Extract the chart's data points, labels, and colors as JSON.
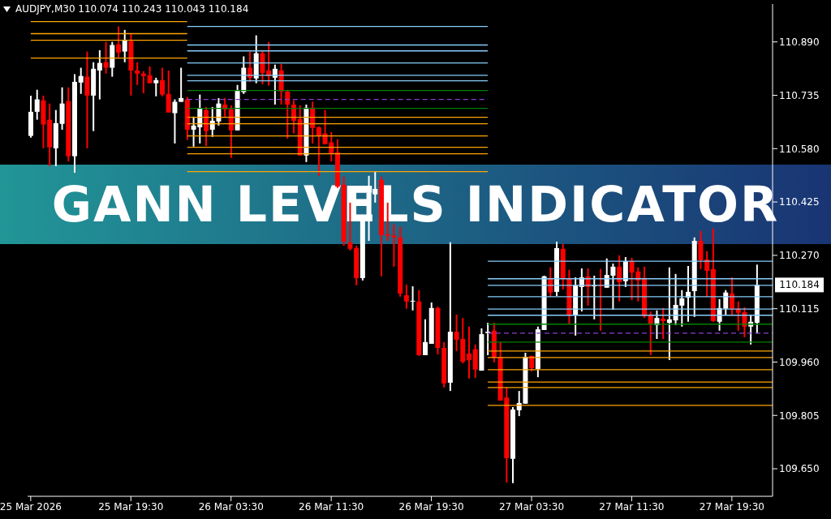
{
  "chart_data": {
    "type": "candlestick",
    "title": "GANN LEVELS INDICATOR",
    "annotations": [
      "AUDJPY,M30 110.074 110.243 110.043 110.184",
      {
        "text": "110.184",
        "x": "2026-03-27T21:30",
        "y": 110.184
      }
    ],
    "x": [
      "2026-03-25T11:30",
      "2026-03-25T12:00",
      "2026-03-25T12:30",
      "2026-03-25T13:00",
      "2026-03-25T13:30",
      "2026-03-25T14:00",
      "2026-03-25T14:30",
      "2026-03-25T15:00",
      "2026-03-25T15:30",
      "2026-03-25T16:00",
      "2026-03-25T16:30",
      "2026-03-25T17:00",
      "2026-03-25T17:30",
      "2026-03-25T18:00",
      "2026-03-25T18:30",
      "2026-03-25T19:00",
      "2026-03-25T19:30",
      "2026-03-25T20:00",
      "2026-03-25T20:30",
      "2026-03-25T21:00",
      "2026-03-25T21:30",
      "2026-03-25T22:00",
      "2026-03-25T22:30",
      "2026-03-25T23:00",
      "2026-03-25T23:30",
      "2026-03-26T00:00",
      "2026-03-26T00:30",
      "2026-03-26T01:00",
      "2026-03-26T01:30",
      "2026-03-26T02:00",
      "2026-03-26T02:30",
      "2026-03-26T03:00",
      "2026-03-26T03:30",
      "2026-03-26T04:00",
      "2026-03-26T04:30",
      "2026-03-26T05:00",
      "2026-03-26T05:30",
      "2026-03-26T06:00",
      "2026-03-26T06:30",
      "2026-03-26T07:00",
      "2026-03-26T07:30",
      "2026-03-26T08:00",
      "2026-03-26T08:30",
      "2026-03-26T09:00",
      "2026-03-26T09:30",
      "2026-03-26T10:00",
      "2026-03-26T10:30",
      "2026-03-26T11:00",
      "2026-03-26T11:30",
      "2026-03-26T12:00",
      "2026-03-26T12:30",
      "2026-03-26T13:00",
      "2026-03-26T13:30",
      "2026-03-26T14:00",
      "2026-03-26T14:30",
      "2026-03-26T15:00",
      "2026-03-26T15:30",
      "2026-03-26T16:00",
      "2026-03-26T16:30",
      "2026-03-26T17:00",
      "2026-03-26T17:30",
      "2026-03-26T18:00",
      "2026-03-26T18:30",
      "2026-03-26T19:00",
      "2026-03-26T19:30",
      "2026-03-26T20:00",
      "2026-03-26T20:30",
      "2026-03-26T21:00",
      "2026-03-26T21:30",
      "2026-03-26T22:00",
      "2026-03-26T22:30",
      "2026-03-26T23:00",
      "2026-03-26T23:30",
      "2026-03-27T00:00",
      "2026-03-27T00:30",
      "2026-03-27T01:00",
      "2026-03-27T01:30",
      "2026-03-27T02:00",
      "2026-03-27T02:30",
      "2026-03-27T03:00",
      "2026-03-27T03:30",
      "2026-03-27T04:00",
      "2026-03-27T04:30",
      "2026-03-27T05:00",
      "2026-03-27T05:30",
      "2026-03-27T06:00",
      "2026-03-27T06:30",
      "2026-03-27T07:00",
      "2026-03-27T07:30",
      "2026-03-27T08:00",
      "2026-03-27T08:30",
      "2026-03-27T09:00",
      "2026-03-27T09:30",
      "2026-03-27T10:00",
      "2026-03-27T10:30",
      "2026-03-27T11:00",
      "2026-03-27T11:30",
      "2026-03-27T12:00",
      "2026-03-27T12:30",
      "2026-03-27T13:00",
      "2026-03-27T13:30",
      "2026-03-27T14:00",
      "2026-03-27T14:30",
      "2026-03-27T15:00",
      "2026-03-27T15:30",
      "2026-03-27T16:00",
      "2026-03-27T16:30",
      "2026-03-27T17:00",
      "2026-03-27T17:30",
      "2026-03-27T18:00",
      "2026-03-27T18:30",
      "2026-03-27T19:00",
      "2026-03-27T19:30",
      "2026-03-27T20:00",
      "2026-03-27T20:30",
      "2026-03-27T21:00",
      "2026-03-27T21:30"
    ],
    "ohlc": [
      [
        110.617,
        110.734,
        110.612,
        110.687
      ],
      [
        110.687,
        110.751,
        110.664,
        110.723
      ],
      [
        110.72,
        110.734,
        110.581,
        110.65
      ],
      [
        110.664,
        110.711,
        110.529,
        110.584
      ],
      [
        110.581,
        110.692,
        110.529,
        110.654
      ],
      [
        110.652,
        110.758,
        110.635,
        110.711
      ],
      [
        110.718,
        110.758,
        110.543,
        110.558
      ],
      [
        110.558,
        110.796,
        110.51,
        110.774
      ],
      [
        110.772,
        110.815,
        110.739,
        110.791
      ],
      [
        110.789,
        110.862,
        110.581,
        110.734
      ],
      [
        110.734,
        110.831,
        110.631,
        110.812
      ],
      [
        110.807,
        110.866,
        110.723,
        110.829
      ],
      [
        110.831,
        110.89,
        110.798,
        110.815
      ],
      [
        110.815,
        110.89,
        110.789,
        110.881
      ],
      [
        110.883,
        110.935,
        110.843,
        110.859
      ],
      [
        110.862,
        110.925,
        110.831,
        110.895
      ],
      [
        110.892,
        110.914,
        110.734,
        110.807
      ],
      [
        110.807,
        110.831,
        110.765,
        110.798
      ],
      [
        110.798,
        110.805,
        110.741,
        110.791
      ],
      [
        110.793,
        110.819,
        110.77,
        110.77
      ],
      [
        110.77,
        110.786,
        110.732,
        110.779
      ],
      [
        110.779,
        110.815,
        110.732,
        110.737
      ],
      [
        110.739,
        110.807,
        110.685,
        110.685
      ],
      [
        110.683,
        110.723,
        110.595,
        110.716
      ],
      [
        110.716,
        110.815,
        110.716,
        110.727
      ],
      [
        110.723,
        110.73,
        110.605,
        110.635
      ],
      [
        110.635,
        110.673,
        110.586,
        110.647
      ],
      [
        110.642,
        110.737,
        110.595,
        110.697
      ],
      [
        110.692,
        110.701,
        110.588,
        110.631
      ],
      [
        110.635,
        110.701,
        110.614,
        110.661
      ],
      [
        110.659,
        110.727,
        110.647,
        110.711
      ],
      [
        110.708,
        110.727,
        110.673,
        110.694
      ],
      [
        110.694,
        110.706,
        110.553,
        110.633
      ],
      [
        110.633,
        110.765,
        110.633,
        110.749
      ],
      [
        110.744,
        110.848,
        110.739,
        110.815
      ],
      [
        110.815,
        110.862,
        110.774,
        110.786
      ],
      [
        110.784,
        110.909,
        110.77,
        110.857
      ],
      [
        110.857,
        110.866,
        110.767,
        110.8
      ],
      [
        110.807,
        110.89,
        110.763,
        110.791
      ],
      [
        110.786,
        110.824,
        110.708,
        110.812
      ],
      [
        110.807,
        110.826,
        110.708,
        110.746
      ],
      [
        110.746,
        110.751,
        110.609,
        110.708
      ],
      [
        110.708,
        110.72,
        110.624,
        110.661
      ],
      [
        110.666,
        110.706,
        110.56,
        110.56
      ],
      [
        110.56,
        110.708,
        110.541,
        110.699
      ],
      [
        110.699,
        110.716,
        110.595,
        110.64
      ],
      [
        110.642,
        110.645,
        110.501,
        110.617
      ],
      [
        110.624,
        110.692,
        110.593,
        110.593
      ],
      [
        110.598,
        110.628,
        110.543,
        110.567
      ],
      [
        110.569,
        110.607,
        110.466,
        110.47
      ],
      [
        110.475,
        110.499,
        110.298,
        110.31
      ],
      [
        110.308,
        110.423,
        110.284,
        110.289
      ],
      [
        110.291,
        110.298,
        110.183,
        110.204
      ],
      [
        110.204,
        110.388,
        110.197,
        110.376
      ],
      [
        110.369,
        110.501,
        110.312,
        110.452
      ],
      [
        110.447,
        110.513,
        110.423,
        110.463
      ],
      [
        110.489,
        110.499,
        110.209,
        110.329
      ],
      [
        110.331,
        110.423,
        110.312,
        110.327
      ],
      [
        110.327,
        110.36,
        110.237,
        110.322
      ],
      [
        110.322,
        110.353,
        110.15,
        110.159
      ],
      [
        110.154,
        110.185,
        110.115,
        110.136
      ],
      [
        110.136,
        110.18,
        110.11,
        110.138
      ],
      [
        110.136,
        110.169,
        109.978,
        109.98
      ],
      [
        109.98,
        110.084,
        109.98,
        110.018
      ],
      [
        110.013,
        110.133,
        110.013,
        110.117
      ],
      [
        110.117,
        110.121,
        109.982,
        110.001
      ],
      [
        110.001,
        110.018,
        109.886,
        109.898
      ],
      [
        109.9,
        110.308,
        109.876,
        110.048
      ],
      [
        110.048,
        110.098,
        109.992,
        110.025
      ],
      [
        110.027,
        110.088,
        109.956,
        109.961
      ],
      [
        109.985,
        110.063,
        109.912,
        109.966
      ],
      [
        109.997,
        110.011,
        109.914,
        109.938
      ],
      [
        109.935,
        110.058,
        109.935,
        110.041
      ],
      [
        110.044,
        110.074,
        109.98,
        110.048
      ],
      [
        110.051,
        110.074,
        109.959,
        109.973
      ],
      [
        109.975,
        110.018,
        109.848,
        109.848
      ],
      [
        109.857,
        109.886,
        109.61,
        109.681
      ],
      [
        109.679,
        109.829,
        109.608,
        109.822
      ],
      [
        109.82,
        109.876,
        109.803,
        109.841
      ],
      [
        109.839,
        109.987,
        109.839,
        109.975
      ],
      [
        109.978,
        109.978,
        109.933,
        109.942
      ],
      [
        109.94,
        110.063,
        109.916,
        110.055
      ],
      [
        110.053,
        110.211,
        110.053,
        110.209
      ],
      [
        110.204,
        110.235,
        110.15,
        110.162
      ],
      [
        110.164,
        110.31,
        110.152,
        110.291
      ],
      [
        110.289,
        110.303,
        110.171,
        110.204
      ],
      [
        110.204,
        110.228,
        110.07,
        110.096
      ],
      [
        110.096,
        110.206,
        110.037,
        110.183
      ],
      [
        110.178,
        110.232,
        110.107,
        110.206
      ],
      [
        110.209,
        110.232,
        110.124,
        110.178
      ],
      [
        110.18,
        110.211,
        110.084,
        110.183
      ],
      [
        110.183,
        110.23,
        110.051,
        110.18
      ],
      [
        110.176,
        110.261,
        110.176,
        110.213
      ],
      [
        110.211,
        110.246,
        110.112,
        110.237
      ],
      [
        110.237,
        110.27,
        110.136,
        110.192
      ],
      [
        110.195,
        110.265,
        110.178,
        110.253
      ],
      [
        110.253,
        110.263,
        110.14,
        110.22
      ],
      [
        110.223,
        110.235,
        110.136,
        110.197
      ],
      [
        110.204,
        110.237,
        110.088,
        110.093
      ],
      [
        110.098,
        110.107,
        109.98,
        110.072
      ],
      [
        110.067,
        110.11,
        110.027,
        110.088
      ],
      [
        110.086,
        110.117,
        110.027,
        110.079
      ],
      [
        110.074,
        110.235,
        109.966,
        110.084
      ],
      [
        110.081,
        110.216,
        110.067,
        110.126
      ],
      [
        110.124,
        110.169,
        110.063,
        110.145
      ],
      [
        110.147,
        110.239,
        110.077,
        110.164
      ],
      [
        110.166,
        110.322,
        110.091,
        110.312
      ],
      [
        110.312,
        110.341,
        110.23,
        110.256
      ],
      [
        110.258,
        110.282,
        110.15,
        110.225
      ],
      [
        110.23,
        110.348,
        110.077,
        110.079
      ],
      [
        110.077,
        110.143,
        110.051,
        110.117
      ],
      [
        110.115,
        110.169,
        110.096,
        110.162
      ],
      [
        110.159,
        110.206,
        110.096,
        110.115
      ],
      [
        110.115,
        110.136,
        110.051,
        110.103
      ],
      [
        110.105,
        110.119,
        110.032,
        110.063
      ],
      [
        110.063,
        110.098,
        110.011,
        110.077
      ],
      [
        110.074,
        110.243,
        110.043,
        110.184
      ]
    ],
    "colors": [
      "#ffffff",
      "#ffffff",
      "#ff0000",
      "#ff0000",
      "#ffffff",
      "#ffffff",
      "#ff0000",
      "#ffffff",
      "#ffffff",
      "#ff0000",
      "#ffffff",
      "#ffffff",
      "#ff0000",
      "#ffffff",
      "#ff0000",
      "#ffffff",
      "#ff0000",
      "#ff0000",
      "#ff0000",
      "#ff0000",
      "#ffffff",
      "#ff0000",
      "#ff0000",
      "#ffffff",
      "#ffffff",
      "#ff0000",
      "#ffffff",
      "#ffffff",
      "#ff0000",
      "#ffffff",
      "#ffffff",
      "#ff0000",
      "#ff0000",
      "#ffffff",
      "#ffffff",
      "#ff0000",
      "#ffffff",
      "#ff0000",
      "#ff0000",
      "#ffffff",
      "#ff0000",
      "#ff0000",
      "#ff0000",
      "#ff0000",
      "#ffffff",
      "#ff0000",
      "#ff0000",
      "#ff0000",
      "#ff0000",
      "#ff0000",
      "#ff0000",
      "#ff0000",
      "#ff0000",
      "#ffffff",
      "#ffffff",
      "#ffffff",
      "#ff0000",
      "#ff0000",
      "#ff0000",
      "#ff0000",
      "#ff0000",
      "#ffffff",
      "#ff0000",
      "#ffffff",
      "#ffffff",
      "#ff0000",
      "#ff0000",
      "#ffffff",
      "#ff0000",
      "#ff0000",
      "#ff0000",
      "#ff0000",
      "#ffffff",
      "#ffffff",
      "#ff0000",
      "#ff0000",
      "#ff0000",
      "#ffffff",
      "#ffffff",
      "#ffffff",
      "#ff0000",
      "#ffffff",
      "#ffffff",
      "#ff0000",
      "#ffffff",
      "#ff0000",
      "#ff0000",
      "#ffffff",
      "#ffffff",
      "#ff0000",
      "#ffffff",
      "#ff0000",
      "#ffffff",
      "#ffffff",
      "#ff0000",
      "#ffffff",
      "#ff0000",
      "#ff0000",
      "#ff0000",
      "#ff0000",
      "#ffffff",
      "#ff0000",
      "#ffffff",
      "#ffffff",
      "#ffffff",
      "#ffffff",
      "#ffffff",
      "#ff0000",
      "#ff0000",
      "#ff0000",
      "#ffffff",
      "#ffffff",
      "#ff0000",
      "#ff0000",
      "#ff0000",
      "#ffffff",
      "#ffffff"
    ],
    "series": [
      {
        "type": "line",
        "color": "#ffa500",
        "x": [
          "2026-03-25T11:30",
          "2026-03-26T00:00"
        ],
        "values": [
          110.949,
          110.949
        ]
      },
      {
        "type": "line",
        "color": "#ffa500",
        "x": [
          "2026-03-25T11:30",
          "2026-03-26T00:00"
        ],
        "values": [
          110.914,
          110.914
        ]
      },
      {
        "type": "line",
        "color": "#ffa500",
        "x": [
          "2026-03-25T11:30",
          "2026-03-26T00:00"
        ],
        "values": [
          110.895,
          110.895
        ]
      },
      {
        "type": "line",
        "color": "#ffa500",
        "x": [
          "2026-03-25T11:30",
          "2026-03-26T00:00"
        ],
        "values": [
          110.843,
          110.843
        ]
      },
      {
        "type": "line",
        "color": "#87cefa",
        "x": [
          "2026-03-26T00:00",
          "2026-03-27T00:00"
        ],
        "values": [
          110.935,
          110.935
        ]
      },
      {
        "type": "line",
        "color": "#87cefa",
        "x": [
          "2026-03-26T00:00",
          "2026-03-27T00:00"
        ],
        "values": [
          110.881,
          110.881
        ]
      },
      {
        "type": "line",
        "color": "#87cefa",
        "x": [
          "2026-03-26T00:00",
          "2026-03-27T00:00"
        ],
        "values": [
          110.864,
          110.864
        ]
      },
      {
        "type": "line",
        "color": "#87cefa",
        "x": [
          "2026-03-26T00:00",
          "2026-03-27T00:00"
        ],
        "values": [
          110.829,
          110.829
        ]
      },
      {
        "type": "line",
        "color": "#87cefa",
        "x": [
          "2026-03-26T00:00",
          "2026-03-27T00:00"
        ],
        "values": [
          110.793,
          110.793
        ]
      },
      {
        "type": "line",
        "color": "#87cefa",
        "x": [
          "2026-03-26T00:00",
          "2026-03-27T00:00"
        ],
        "values": [
          110.777,
          110.777
        ]
      },
      {
        "type": "line",
        "color": "#008000",
        "x": [
          "2026-03-26T00:00",
          "2026-03-27T00:00"
        ],
        "values": [
          110.749,
          110.749
        ]
      },
      {
        "type": "line",
        "color": "#8a3fd0",
        "line_style": "dashed",
        "x": [
          "2026-03-26T00:00",
          "2026-03-27T00:00"
        ],
        "values": [
          110.723,
          110.723
        ]
      },
      {
        "type": "line",
        "color": "#008000",
        "x": [
          "2026-03-26T00:00",
          "2026-03-27T00:00"
        ],
        "values": [
          110.697,
          110.697
        ]
      },
      {
        "type": "line",
        "color": "#ffa500",
        "x": [
          "2026-03-26T00:00",
          "2026-03-27T00:00"
        ],
        "values": [
          110.671,
          110.671
        ]
      },
      {
        "type": "line",
        "color": "#ffa500",
        "x": [
          "2026-03-26T00:00",
          "2026-03-27T00:00"
        ],
        "values": [
          110.652,
          110.652
        ]
      },
      {
        "type": "line",
        "color": "#ffa500",
        "x": [
          "2026-03-26T00:00",
          "2026-03-27T00:00"
        ],
        "values": [
          110.617,
          110.617
        ]
      },
      {
        "type": "line",
        "color": "#ffa500",
        "x": [
          "2026-03-26T00:00",
          "2026-03-27T00:00"
        ],
        "values": [
          110.584,
          110.584
        ]
      },
      {
        "type": "line",
        "color": "#ffa500",
        "x": [
          "2026-03-26T00:00",
          "2026-03-27T00:00"
        ],
        "values": [
          110.565,
          110.565
        ]
      },
      {
        "type": "line",
        "color": "#ffa500",
        "x": [
          "2026-03-26T00:00",
          "2026-03-27T00:00"
        ],
        "values": [
          110.513,
          110.513
        ]
      },
      {
        "type": "line",
        "color": "#87cefa",
        "x": [
          "2026-03-27T00:00",
          "2026-03-27T22:45"
        ],
        "values": [
          110.253,
          110.253
        ]
      },
      {
        "type": "line",
        "color": "#87cefa",
        "x": [
          "2026-03-27T00:00",
          "2026-03-27T22:45"
        ],
        "values": [
          110.202,
          110.202
        ]
      },
      {
        "type": "line",
        "color": "#87cefa",
        "x": [
          "2026-03-27T00:00",
          "2026-03-27T22:45"
        ],
        "values": [
          110.183,
          110.183
        ]
      },
      {
        "type": "line",
        "color": "#87cefa",
        "x": [
          "2026-03-27T00:00",
          "2026-03-27T22:45"
        ],
        "values": [
          110.15,
          110.15
        ]
      },
      {
        "type": "line",
        "color": "#87cefa",
        "x": [
          "2026-03-27T00:00",
          "2026-03-27T22:45"
        ],
        "values": [
          110.114,
          110.114
        ]
      },
      {
        "type": "line",
        "color": "#87cefa",
        "x": [
          "2026-03-27T00:00",
          "2026-03-27T22:45"
        ],
        "values": [
          110.096,
          110.096
        ]
      },
      {
        "type": "line",
        "color": "#008000",
        "x": [
          "2026-03-27T00:00",
          "2026-03-27T22:45"
        ],
        "values": [
          110.07,
          110.07
        ]
      },
      {
        "type": "line",
        "color": "#8a3fd0",
        "line_style": "dashed",
        "x": [
          "2026-03-27T00:00",
          "2026-03-27T22:45"
        ],
        "values": [
          110.044,
          110.044
        ]
      },
      {
        "type": "line",
        "color": "#008000",
        "x": [
          "2026-03-27T00:00",
          "2026-03-27T22:45"
        ],
        "values": [
          110.018,
          110.018
        ]
      },
      {
        "type": "line",
        "color": "#ffa500",
        "x": [
          "2026-03-27T00:00",
          "2026-03-27T22:45"
        ],
        "values": [
          109.992,
          109.992
        ]
      },
      {
        "type": "line",
        "color": "#ffa500",
        "x": [
          "2026-03-27T00:00",
          "2026-03-27T22:45"
        ],
        "values": [
          109.973,
          109.973
        ]
      },
      {
        "type": "line",
        "color": "#ffa500",
        "x": [
          "2026-03-27T00:00",
          "2026-03-27T22:45"
        ],
        "values": [
          109.938,
          109.938
        ]
      },
      {
        "type": "line",
        "color": "#ffa500",
        "x": [
          "2026-03-27T00:00",
          "2026-03-27T22:45"
        ],
        "values": [
          109.902,
          109.902
        ]
      },
      {
        "type": "line",
        "color": "#ffa500",
        "x": [
          "2026-03-27T00:00",
          "2026-03-27T22:45"
        ],
        "values": [
          109.886,
          109.886
        ]
      },
      {
        "type": "line",
        "color": "#ffa500",
        "x": [
          "2026-03-27T00:00",
          "2026-03-27T22:45"
        ],
        "values": [
          109.834,
          109.834
        ]
      }
    ],
    "xlim": [
      "2026-03-25T11:15",
      "2026-03-27T22:45"
    ],
    "xticks": [
      {
        "value": "2026-03-25T11:30",
        "label": "25 Mar 2026"
      },
      {
        "value": "2026-03-25T19:30",
        "label": "25 Mar 19:30"
      },
      {
        "value": "2026-03-26T03:30",
        "label": "26 Mar 03:30"
      },
      {
        "value": "2026-03-26T11:30",
        "label": "26 Mar 11:30"
      },
      {
        "value": "2026-03-26T19:30",
        "label": "26 Mar 19:30"
      },
      {
        "value": "2026-03-27T03:30",
        "label": "27 Mar 03:30"
      },
      {
        "value": "2026-03-27T11:30",
        "label": "27 Mar 11:30"
      },
      {
        "value": "2026-03-27T19:30",
        "label": "27 Mar 19:30"
      }
    ],
    "ylim": [
      109.57,
      111.0
    ],
    "yticks": [
      {
        "value": 110.89,
        "label": "110.890"
      },
      110.735,
      {
        "value": 110.58,
        "label": "110.580"
      },
      110.425,
      {
        "value": 110.27,
        "label": "110.270"
      },
      110.115,
      {
        "value": 109.96,
        "label": "109.960"
      },
      109.805,
      {
        "value": 109.65,
        "label": "109.650"
      }
    ]
  }
}
